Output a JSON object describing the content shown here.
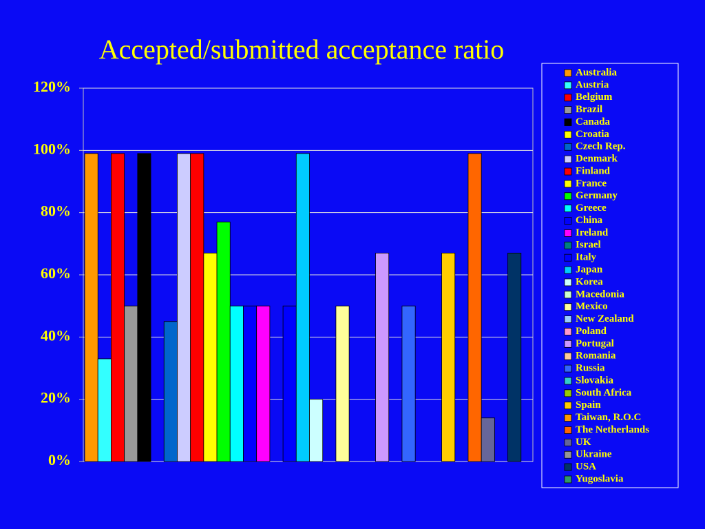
{
  "chart_data": {
    "type": "bar",
    "title": "Accepted/submitted acceptance ratio",
    "categories": [
      "Australia",
      "Austria",
      "Belgium",
      "Brazil",
      "Canada",
      "Croatia",
      "Czech Rep.",
      "Denmark",
      "Finland",
      "France",
      "Germany",
      "Greece",
      "China",
      "Ireland",
      "Israel",
      "Italy",
      "Japan",
      "Korea",
      "Macedonia",
      "Mexico",
      "New Zealand",
      "Poland",
      "Portugal",
      "Romania",
      "Russia",
      "Slovakia",
      "South Africa",
      "Spain",
      "Taiwan, R.O.C",
      "The Netherlands",
      "UK",
      "Ukraine",
      "USA",
      "Yugoslavia"
    ],
    "values": [
      99,
      33,
      99,
      50,
      99,
      0,
      45,
      99,
      99,
      67,
      77,
      50,
      50,
      50,
      0,
      50,
      99,
      20,
      0,
      50,
      0,
      0,
      67,
      0,
      50,
      0,
      0,
      67,
      0,
      99,
      14,
      0,
      67,
      0
    ],
    "colors": [
      "#ff9900",
      "#33ffff",
      "#ff0000",
      "#999999",
      "#000000",
      "#ffff00",
      "#0066cc",
      "#ccccff",
      "#ff0000",
      "#ffff00",
      "#00ff00",
      "#00ffff",
      "#0000ff",
      "#ff00ff",
      "#008080",
      "#0000ff",
      "#00ccff",
      "#ccffff",
      "#ccffcc",
      "#ffff99",
      "#99ccff",
      "#ff99cc",
      "#cc99ff",
      "#ffcc99",
      "#3366ff",
      "#33cccc",
      "#99cc00",
      "#ffcc00",
      "#ff9900",
      "#ff6600",
      "#666699",
      "#969696",
      "#003366",
      "#339966"
    ],
    "ylim": [
      0,
      120
    ],
    "yticks": [
      {
        "value": 0,
        "label": "0%"
      },
      {
        "value": 20,
        "label": "20%"
      },
      {
        "value": 40,
        "label": "40%"
      },
      {
        "value": 60,
        "label": "60%"
      },
      {
        "value": 80,
        "label": "80%"
      },
      {
        "value": 100,
        "label": "100%"
      },
      {
        "value": 120,
        "label": "120%"
      }
    ],
    "grid": true,
    "legend": "right"
  }
}
